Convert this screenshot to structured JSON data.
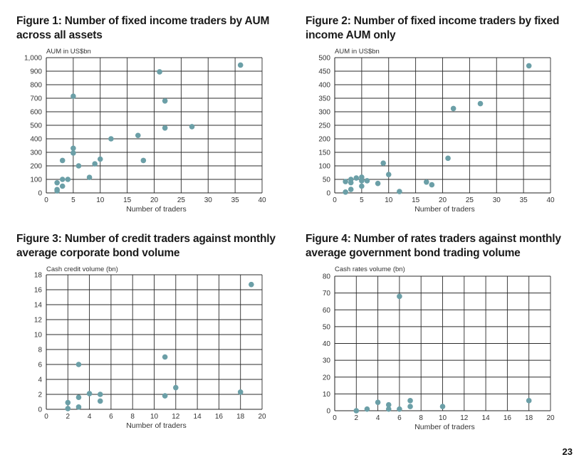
{
  "page_number": "23",
  "chart_data": [
    {
      "type": "scatter",
      "title": "Figure 1: Number of fixed income traders by AUM across all assets",
      "title_lines": [
        "Figure 1: Number of fixed income traders by AUM",
        "across all assets"
      ],
      "ylabel": "AUM in US$bn",
      "xlabel": "Number of traders",
      "xlim": [
        0,
        40
      ],
      "ylim": [
        0,
        1000
      ],
      "xticks": [
        0,
        5,
        10,
        15,
        20,
        25,
        30,
        35,
        40
      ],
      "yticks": [
        0,
        100,
        200,
        300,
        400,
        500,
        600,
        700,
        800,
        900,
        1000
      ],
      "ytick_labels": [
        "0",
        "100",
        "200",
        "300",
        "400",
        "500",
        "600",
        "700",
        "800",
        "900",
        "1,000"
      ],
      "grid": true,
      "marker_color": "#6b9fa7",
      "points": [
        [
          2,
          15
        ],
        [
          2,
          25
        ],
        [
          2,
          75
        ],
        [
          3,
          50
        ],
        [
          3,
          100
        ],
        [
          3,
          240
        ],
        [
          4,
          100
        ],
        [
          5,
          295
        ],
        [
          5,
          330
        ],
        [
          5,
          715
        ],
        [
          6,
          200
        ],
        [
          8,
          115
        ],
        [
          9,
          215
        ],
        [
          10,
          250
        ],
        [
          12,
          400
        ],
        [
          17,
          425
        ],
        [
          18,
          240
        ],
        [
          21,
          895
        ],
        [
          22,
          480
        ],
        [
          22,
          680
        ],
        [
          27,
          490
        ],
        [
          36,
          945
        ]
      ]
    },
    {
      "type": "scatter",
      "title": "Figure 2: Number of fixed income traders by fixed income AUM only",
      "title_lines": [
        "Figure 2: Number of fixed income traders by fixed",
        "income AUM only"
      ],
      "ylabel": "AUM in US$bn",
      "xlabel": "Number of traders",
      "xlim": [
        0,
        40
      ],
      "ylim": [
        0,
        500
      ],
      "xticks": [
        0,
        5,
        10,
        15,
        20,
        25,
        30,
        35,
        40
      ],
      "yticks": [
        0,
        50,
        100,
        150,
        200,
        250,
        300,
        350,
        400,
        450,
        500
      ],
      "ytick_labels": [
        "0",
        "50",
        "100",
        "150",
        "200",
        "250",
        "300",
        "350",
        "400",
        "450",
        "500"
      ],
      "grid": true,
      "marker_color": "#6b9fa7",
      "points": [
        [
          2,
          3
        ],
        [
          2,
          42
        ],
        [
          3,
          13
        ],
        [
          3,
          38
        ],
        [
          3,
          50
        ],
        [
          4,
          55
        ],
        [
          5,
          25
        ],
        [
          5,
          45
        ],
        [
          5,
          58
        ],
        [
          6,
          45
        ],
        [
          8,
          35
        ],
        [
          9,
          110
        ],
        [
          10,
          68
        ],
        [
          12,
          5
        ],
        [
          17,
          40
        ],
        [
          18,
          30
        ],
        [
          21,
          128
        ],
        [
          22,
          312
        ],
        [
          27,
          330
        ],
        [
          36,
          470
        ]
      ]
    },
    {
      "type": "scatter",
      "title": "Figure 3: Number of credit traders against monthly average corporate bond volume",
      "title_lines": [
        "Figure 3: Number of credit traders against monthly",
        "average corporate bond volume"
      ],
      "ylabel": "Cash credit volume (bn)",
      "xlabel": "Number of traders",
      "xlim": [
        0,
        20
      ],
      "ylim": [
        0,
        18
      ],
      "xticks": [
        0,
        2,
        4,
        6,
        8,
        10,
        12,
        14,
        16,
        18,
        20
      ],
      "yticks": [
        0,
        2,
        4,
        6,
        8,
        10,
        12,
        14,
        16,
        18
      ],
      "ytick_labels": [
        "0",
        "2",
        "4",
        "6",
        "8",
        "10",
        "12",
        "14",
        "16",
        "18"
      ],
      "grid": true,
      "marker_color": "#6b9fa7",
      "points": [
        [
          2,
          0.1
        ],
        [
          2,
          0.9
        ],
        [
          3,
          0.3
        ],
        [
          3,
          1.6
        ],
        [
          3,
          6.0
        ],
        [
          4,
          2.1
        ],
        [
          5,
          1.1
        ],
        [
          5,
          2.0
        ],
        [
          11,
          1.8
        ],
        [
          11,
          7.0
        ],
        [
          12,
          2.9
        ],
        [
          18,
          2.3
        ],
        [
          19,
          16.7
        ]
      ]
    },
    {
      "type": "scatter",
      "title": "Figure 4: Number of rates traders against monthly average government bond trading volume",
      "title_lines": [
        "Figure 4: Number of rates traders against monthly",
        "average government bond trading volume"
      ],
      "ylabel": "Cash rates volume (bn)",
      "xlabel": "Number of traders",
      "xlim": [
        0,
        20
      ],
      "ylim": [
        0,
        80
      ],
      "xticks": [
        0,
        2,
        4,
        6,
        8,
        10,
        12,
        14,
        16,
        18,
        20
      ],
      "yticks": [
        0,
        10,
        20,
        30,
        40,
        50,
        60,
        70,
        80
      ],
      "ytick_labels": [
        "0",
        "10",
        "20",
        "30",
        "40",
        "50",
        "60",
        "70",
        "80"
      ],
      "grid": true,
      "marker_color": "#6b9fa7",
      "points": [
        [
          2,
          0
        ],
        [
          3,
          1
        ],
        [
          4,
          5
        ],
        [
          5,
          1
        ],
        [
          5,
          3.5
        ],
        [
          6,
          1
        ],
        [
          6,
          68
        ],
        [
          7,
          2.5
        ],
        [
          7,
          6
        ],
        [
          10,
          2.5
        ],
        [
          18,
          6
        ]
      ]
    }
  ]
}
